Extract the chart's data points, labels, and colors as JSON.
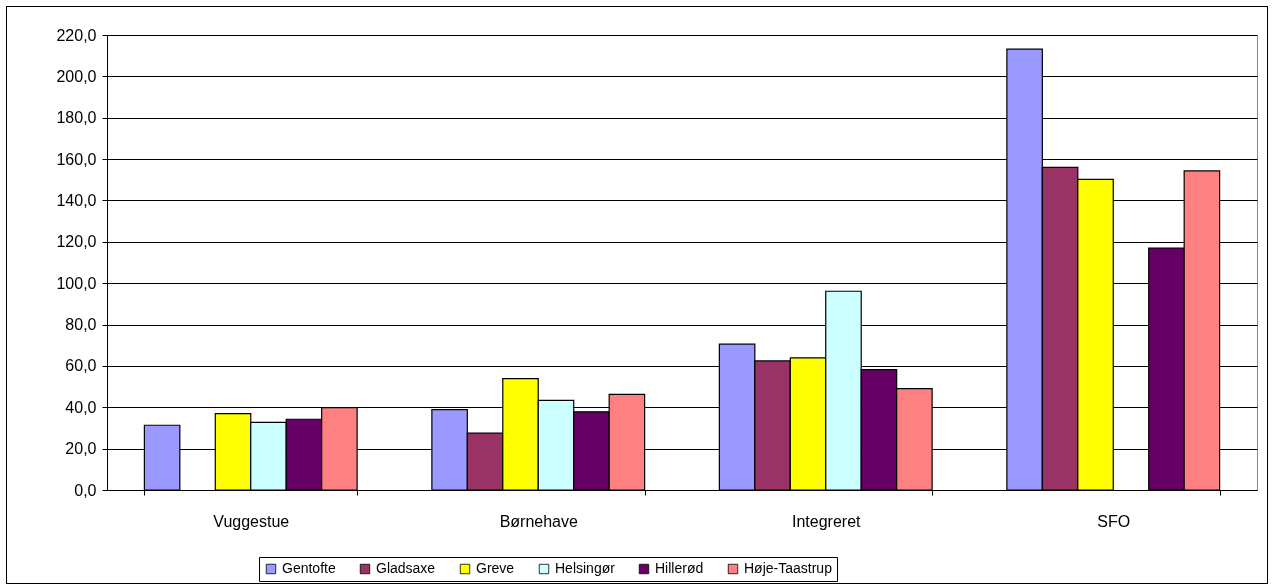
{
  "chart_data": {
    "type": "bar",
    "categories": [
      "Vuggestue",
      "Børnehave",
      "Integreret",
      "SFO"
    ],
    "series": [
      {
        "name": "Gentofte",
        "color": "#9999ff",
        "values": [
          31.3,
          38.9,
          70.5,
          213.2
        ]
      },
      {
        "name": "Gladsaxe",
        "color": "#993366",
        "values": [
          null,
          27.5,
          62.4,
          156.0
        ]
      },
      {
        "name": "Greve",
        "color": "#ffff00",
        "values": [
          36.9,
          53.9,
          63.9,
          150.2
        ]
      },
      {
        "name": "Helsingør",
        "color": "#ccffff",
        "values": [
          32.7,
          43.3,
          96.1,
          null
        ]
      },
      {
        "name": "Hillerød",
        "color": "#660066",
        "values": [
          34.2,
          37.8,
          58.2,
          117.0
        ]
      },
      {
        "name": "Høje-Taastrup",
        "color": "#ff8080",
        "values": [
          39.8,
          46.2,
          49.0,
          154.3
        ]
      }
    ],
    "ylim": [
      0,
      220
    ],
    "yticks": [
      {
        "value": 0,
        "label": "0,0"
      },
      {
        "value": 20,
        "label": "20,0"
      },
      {
        "value": 40,
        "label": "40,0"
      },
      {
        "value": 60,
        "label": "60,0"
      },
      {
        "value": 80,
        "label": "80,0"
      },
      {
        "value": 100,
        "label": "100,0"
      },
      {
        "value": 120,
        "label": "120,0"
      },
      {
        "value": 140,
        "label": "140,0"
      },
      {
        "value": 160,
        "label": "160,0"
      },
      {
        "value": 180,
        "label": "180,0"
      },
      {
        "value": 200,
        "label": "200,0"
      },
      {
        "value": 220,
        "label": "220,0"
      }
    ],
    "grid": "y",
    "legend": "bottom"
  }
}
